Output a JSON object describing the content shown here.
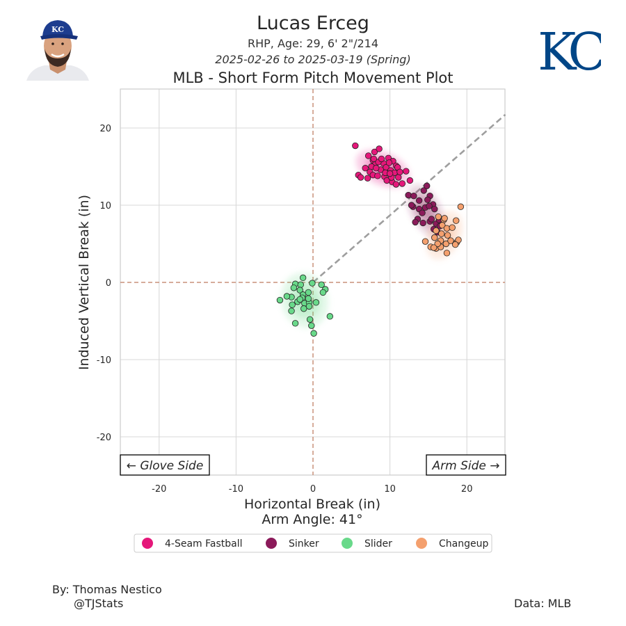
{
  "header": {
    "player_name": "Lucas Erceg",
    "player_info": "RHP, Age: 29, 6' 2\"/214",
    "date_range": "2025-02-26 to 2025-03-19 (Spring)",
    "plot_title": "MLB - Short Form Pitch Movement Plot"
  },
  "logo": {
    "team_letters": "KC",
    "team_color": "#004687"
  },
  "footer": {
    "credit_line1": "By: Thomas Nestico",
    "credit_line2": "@TJStats",
    "data_source": "Data: MLB"
  },
  "chart_data": {
    "type": "scatter",
    "xlabel": "Horizontal Break (in)",
    "xlabel2": "Arm Angle: 41°",
    "ylabel": "Induced Vertical Break (in)",
    "xlim": [
      -25,
      25
    ],
    "ylim": [
      -25,
      25
    ],
    "xticks": [
      -20,
      -10,
      0,
      10,
      20
    ],
    "yticks": [
      -20,
      -10,
      0,
      10,
      20
    ],
    "grid": true,
    "arm_angle_deg": 41,
    "annotations": {
      "left": "← Glove Side",
      "right": "Arm Side →"
    },
    "legend_position": "bottom",
    "series": [
      {
        "name": "4-Seam Fastball",
        "color": "#e5177a",
        "points": [
          [
            5.5,
            17.7
          ],
          [
            7.2,
            16.4
          ],
          [
            7.8,
            15.8
          ],
          [
            8.0,
            16.9
          ],
          [
            8.6,
            17.3
          ],
          [
            9.8,
            16.1
          ],
          [
            10.4,
            15.7
          ],
          [
            10.8,
            15.1
          ],
          [
            9.2,
            15.4
          ],
          [
            8.1,
            15.3
          ],
          [
            7.6,
            15.0
          ],
          [
            6.8,
            14.8
          ],
          [
            7.4,
            14.3
          ],
          [
            7.8,
            13.9
          ],
          [
            8.4,
            13.8
          ],
          [
            9.3,
            13.7
          ],
          [
            9.6,
            13.2
          ],
          [
            10.3,
            13.0
          ],
          [
            10.8,
            12.7
          ],
          [
            11.6,
            12.8
          ],
          [
            12.1,
            14.4
          ],
          [
            12.6,
            13.2
          ],
          [
            5.9,
            13.9
          ],
          [
            6.2,
            13.6
          ],
          [
            7.1,
            13.5
          ],
          [
            8.8,
            14.6
          ],
          [
            9.5,
            14.9
          ],
          [
            10.1,
            14.5
          ],
          [
            10.6,
            14.2
          ],
          [
            11.1,
            13.6
          ],
          [
            11.0,
            14.9
          ],
          [
            9.9,
            15.5
          ],
          [
            8.5,
            15.6
          ],
          [
            8.9,
            16.0
          ],
          [
            7.9,
            16.0
          ],
          [
            9.4,
            14.2
          ],
          [
            10.2,
            13.6
          ],
          [
            11.3,
            14.3
          ],
          [
            10.0,
            14.1
          ],
          [
            8.2,
            14.8
          ]
        ]
      },
      {
        "name": "Sinker",
        "color": "#8b1a5a",
        "points": [
          [
            12.4,
            11.3
          ],
          [
            13.1,
            11.2
          ],
          [
            13.8,
            10.6
          ],
          [
            14.4,
            11.9
          ],
          [
            14.8,
            12.5
          ],
          [
            15.2,
            11.2
          ],
          [
            15.6,
            10.1
          ],
          [
            13.0,
            9.8
          ],
          [
            13.8,
            9.5
          ],
          [
            14.6,
            9.7
          ],
          [
            15.1,
            9.9
          ],
          [
            15.8,
            9.5
          ],
          [
            14.2,
            9.0
          ],
          [
            13.6,
            8.2
          ],
          [
            13.3,
            7.8
          ],
          [
            14.3,
            7.7
          ],
          [
            15.2,
            7.9
          ],
          [
            16.0,
            7.6
          ],
          [
            16.5,
            7.3
          ],
          [
            15.7,
            6.9
          ],
          [
            16.2,
            6.5
          ],
          [
            15.4,
            8.2
          ],
          [
            14.9,
            10.7
          ],
          [
            16.4,
            8.1
          ],
          [
            12.8,
            10.0
          ]
        ]
      },
      {
        "name": "Slider",
        "color": "#69d98a",
        "points": [
          [
            -1.3,
            0.6
          ],
          [
            -2.3,
            -0.2
          ],
          [
            -1.6,
            -0.3
          ],
          [
            -2.5,
            -0.7
          ],
          [
            -1.7,
            -1.0
          ],
          [
            -1.3,
            -1.6
          ],
          [
            -1.4,
            -2.0
          ],
          [
            -0.6,
            -1.3
          ],
          [
            -0.1,
            -0.1
          ],
          [
            1.1,
            -0.3
          ],
          [
            1.6,
            -0.9
          ],
          [
            1.3,
            -1.3
          ],
          [
            -2.8,
            -1.9
          ],
          [
            -3.4,
            -1.8
          ],
          [
            -4.3,
            -2.3
          ],
          [
            -2.0,
            -2.5
          ],
          [
            -1.1,
            -2.7
          ],
          [
            -0.5,
            -2.6
          ],
          [
            0.4,
            -2.6
          ],
          [
            -0.5,
            -3.1
          ],
          [
            -1.2,
            -3.4
          ],
          [
            -2.7,
            -2.9
          ],
          [
            -2.8,
            -3.7
          ],
          [
            -0.4,
            -4.8
          ],
          [
            -0.2,
            -5.6
          ],
          [
            0.1,
            -6.6
          ],
          [
            -2.3,
            -5.3
          ],
          [
            2.2,
            -4.4
          ],
          [
            -1.7,
            -2.2
          ],
          [
            -0.6,
            -2.1
          ]
        ]
      },
      {
        "name": "Changeup",
        "color": "#f4a06e",
        "points": [
          [
            16.3,
            8.5
          ],
          [
            17.0,
            8.1
          ],
          [
            16.8,
            7.4
          ],
          [
            17.4,
            7.0
          ],
          [
            18.1,
            7.1
          ],
          [
            18.6,
            8.0
          ],
          [
            19.2,
            9.8
          ],
          [
            16.0,
            6.7
          ],
          [
            16.7,
            6.3
          ],
          [
            17.5,
            6.1
          ],
          [
            15.8,
            5.8
          ],
          [
            16.6,
            5.4
          ],
          [
            17.3,
            5.0
          ],
          [
            17.9,
            5.4
          ],
          [
            18.7,
            5.2
          ],
          [
            18.9,
            5.5
          ],
          [
            18.5,
            4.9
          ],
          [
            14.6,
            5.3
          ],
          [
            15.3,
            4.6
          ],
          [
            16.0,
            4.4
          ],
          [
            16.6,
            4.6
          ],
          [
            17.4,
            3.8
          ],
          [
            16.2,
            5.0
          ],
          [
            15.7,
            4.5
          ],
          [
            17.1,
            8.3
          ]
        ]
      }
    ]
  }
}
